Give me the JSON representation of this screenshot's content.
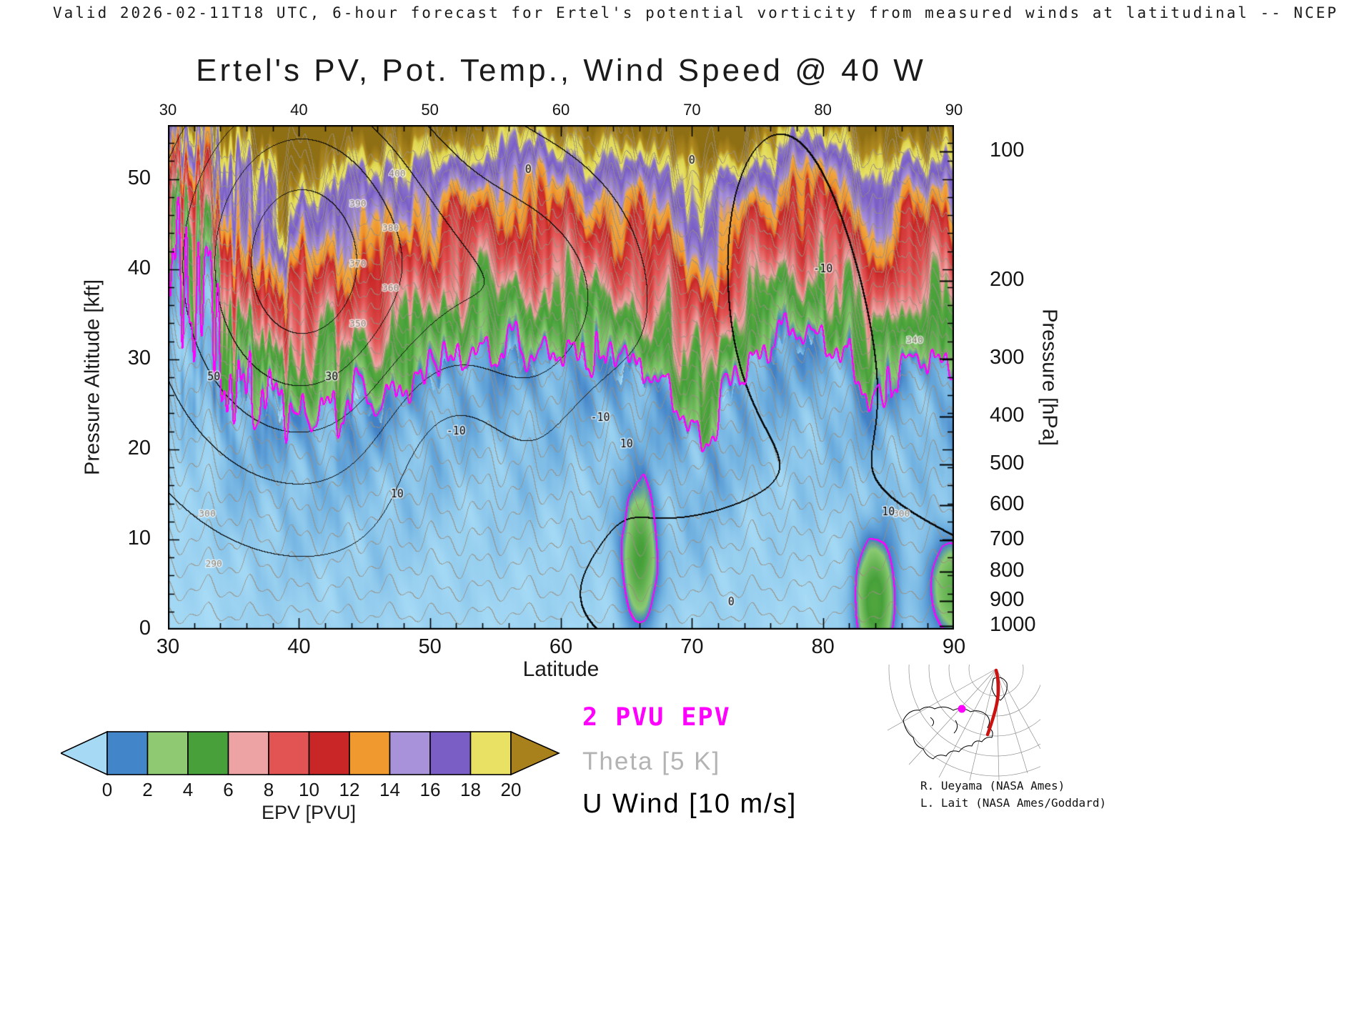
{
  "header": {
    "line": "Valid 2026-02-11T18 UTC, 6-hour forecast for Ertel's potential vorticity from measured winds at latitudinal -- NCEP"
  },
  "title": "Ertel's PV, Pot. Temp., Wind Speed @ 40 W",
  "axes": {
    "x": {
      "label": "Latitude",
      "ticks": [
        30,
        40,
        50,
        60,
        70,
        80,
        90
      ],
      "minor_step": 2
    },
    "y_left": {
      "label": "Pressure Altitude [kft]",
      "ticks": [
        0,
        10,
        20,
        30,
        40,
        50
      ],
      "minor_step": 2
    },
    "y_right": {
      "label": "Pressure [hPa]",
      "ticks": [
        100,
        200,
        300,
        400,
        500,
        600,
        700,
        800,
        900,
        1000
      ]
    }
  },
  "colorbar": {
    "label": "EPV [PVU]",
    "ticks": [
      0,
      2,
      4,
      6,
      8,
      10,
      12,
      14,
      16,
      18,
      20
    ],
    "segment_colors": [
      "#a6d9f4",
      "#4285c8",
      "#8fca72",
      "#47a03a",
      "#eda3a3",
      "#e25454",
      "#c92727",
      "#f0992f",
      "#a892da",
      "#7a5ec6",
      "#e8e164",
      "#a8801c"
    ]
  },
  "legend": {
    "items": [
      {
        "label": "2 PVU EPV",
        "color": "#ff00ff"
      },
      {
        "label": "Theta [5 K]",
        "color": "#b3b3b3"
      },
      {
        "label": "U Wind [10 m/s]",
        "color": "#000000"
      }
    ]
  },
  "credits": {
    "line1": "R. Ueyama (NASA Ames)",
    "line2": "L. Lait (NASA Ames/Goddard)"
  },
  "chart_data": {
    "type": "heatmap",
    "title": "Ertel's PV, Pot. Temp., Wind Speed @ 40 W",
    "fill_field": "Ertel potential vorticity [PVU]",
    "x_label": "Latitude",
    "x_range": [
      30,
      90
    ],
    "y_left_label": "Pressure Altitude [kft]",
    "y_left_range": [
      0,
      56
    ],
    "y_right_label": "Pressure [hPa]",
    "fill_levels": [
      0,
      2,
      4,
      6,
      8,
      10,
      12,
      14,
      16,
      18,
      20
    ],
    "colormap": [
      [
        0.0,
        "#a8dcf6"
      ],
      [
        1.0,
        "#6fb0e0"
      ],
      [
        2.0,
        "#3f7ec4"
      ],
      [
        2.8,
        "#8bca72"
      ],
      [
        5.0,
        "#46a03a"
      ],
      [
        6.2,
        "#56a93f"
      ],
      [
        7.0,
        "#eda3a3"
      ],
      [
        9.0,
        "#e25454"
      ],
      [
        11.5,
        "#c92727"
      ],
      [
        12.4,
        "#ef9029"
      ],
      [
        13.8,
        "#f0a840"
      ],
      [
        14.6,
        "#a892da"
      ],
      [
        16.6,
        "#7a5ec6"
      ],
      [
        17.9,
        "#8a74cc"
      ],
      [
        18.7,
        "#e8e164"
      ],
      [
        19.9,
        "#ddd44f"
      ],
      [
        20.8,
        "#b08a20"
      ],
      [
        23.0,
        "#8f6f14"
      ]
    ],
    "epv_highlight_level": 2,
    "tropopause_2pvu_kft": [
      [
        30,
        44
      ],
      [
        31,
        39
      ],
      [
        32,
        34
      ],
      [
        33,
        40
      ],
      [
        34,
        29
      ],
      [
        35,
        24
      ],
      [
        36,
        27
      ],
      [
        37,
        23.5
      ],
      [
        38,
        26
      ],
      [
        39,
        22.5
      ],
      [
        40,
        24
      ],
      [
        41,
        23
      ],
      [
        42,
        25.5
      ],
      [
        43,
        23
      ],
      [
        44,
        24.5
      ],
      [
        45,
        25
      ],
      [
        46,
        24
      ],
      [
        47,
        26
      ],
      [
        48,
        27
      ],
      [
        50,
        27.5
      ],
      [
        52,
        30
      ],
      [
        54,
        31
      ],
      [
        56,
        30
      ],
      [
        58,
        29.5
      ],
      [
        60,
        31
      ],
      [
        62,
        30
      ],
      [
        64,
        29
      ],
      [
        66,
        28.5
      ],
      [
        68,
        27
      ],
      [
        70,
        22
      ],
      [
        71,
        20.5
      ],
      [
        72,
        23
      ],
      [
        73,
        26
      ],
      [
        74,
        29
      ],
      [
        76,
        31
      ],
      [
        78,
        32
      ],
      [
        80,
        32
      ],
      [
        82,
        30
      ],
      [
        83,
        27
      ],
      [
        84,
        24.5
      ],
      [
        85,
        26
      ],
      [
        86,
        29
      ],
      [
        88,
        30
      ],
      [
        90,
        29
      ]
    ],
    "anomalies": [
      [
        66,
        8,
        0.9,
        5,
        5
      ],
      [
        84,
        3,
        1.0,
        4.5,
        5.5
      ],
      [
        90,
        4.5,
        1.4,
        4,
        4
      ],
      [
        38.5,
        45,
        0.9,
        3.5,
        6
      ]
    ],
    "wind_cells": [
      [
        48,
        40,
        7.5,
        42,
        16
      ],
      [
        20,
        57,
        6,
        34,
        12
      ],
      [
        12,
        86,
        7,
        42,
        12
      ],
      [
        -16,
        52,
        4.5,
        23,
        9
      ],
      [
        -10,
        63,
        3.5,
        22,
        7
      ],
      [
        -14,
        80,
        6,
        38,
        12
      ],
      [
        10,
        48,
        20,
        30,
        20
      ],
      [
        -6,
        71,
        10,
        6,
        6
      ]
    ],
    "u_contour_interval_m_s": 10,
    "u_levels": [
      -30,
      -20,
      -10,
      0,
      10,
      20,
      30,
      40,
      50
    ],
    "theta_contour_interval_k": 5,
    "theta_levels_range": [
      280,
      410
    ],
    "theta_labels": [
      {
        "v": 290,
        "lat": 33.5
      },
      {
        "v": 300,
        "lat": 33
      },
      {
        "v": 350,
        "lat": 44.5
      },
      {
        "v": 360,
        "lat": 47
      },
      {
        "v": 370,
        "lat": 44.5
      },
      {
        "v": 380,
        "lat": 47
      },
      {
        "v": 390,
        "lat": 44.5
      },
      {
        "v": 400,
        "lat": 47.5
      },
      {
        "v": 340,
        "lat": 87
      },
      {
        "v": 300,
        "lat": 86
      }
    ],
    "u_labels": [
      {
        "v": "50",
        "lat": 33.5,
        "z": 28
      },
      {
        "v": "30",
        "lat": 42.5,
        "z": 28
      },
      {
        "v": "10",
        "lat": 47.5,
        "z": 15
      },
      {
        "v": "-10",
        "lat": 52,
        "z": 22
      },
      {
        "v": "10",
        "lat": 65,
        "z": 20.5
      },
      {
        "v": "-10",
        "lat": 63,
        "z": 23.5
      },
      {
        "v": "0",
        "lat": 57.5,
        "z": 51
      },
      {
        "v": "0",
        "lat": 70,
        "z": 52
      },
      {
        "v": "-10",
        "lat": 80,
        "z": 40
      },
      {
        "v": "10",
        "lat": 85,
        "z": 13
      },
      {
        "v": "0",
        "lat": 73,
        "z": 3
      }
    ],
    "noise": {
      "trop_wiggle": [
        [
          1.1,
          2.7,
          0.4
        ],
        [
          0.7,
          5.9,
          1.8
        ],
        [
          0.5,
          11.3,
          3.1
        ]
      ],
      "stripe": {
        "amp": 5.5,
        "decay": 5.5,
        "freqs": [
          [
            1,
            7.9,
            1
          ],
          [
            0.8,
            12.7,
            2.6
          ]
        ]
      },
      "strat_wobble": [
        [
          1.1,
          0.9,
          0.28,
          1.2
        ],
        [
          0.7,
          2.2,
          -0.2,
          0.5
        ],
        [
          0.5,
          6.5,
          0.12,
          2.0
        ]
      ],
      "tropo_mottle": [
        0.4,
        1.45,
        0.35,
        0.6
      ],
      "top_ramp": {
        "base": 49,
        "amp": 2.2,
        "freq": 0.55,
        "phase": 1.3,
        "rate": 0.55
      }
    },
    "theta_model": {
      "t0": 277,
      "tropo_rate": 1.8,
      "strat_rate": 3.0,
      "bend_offset": -2,
      "wiggle": [
        [
          0.8,
          1.8,
          2
        ],
        [
          0.5,
          4.1,
          0.7
        ]
      ]
    }
  }
}
